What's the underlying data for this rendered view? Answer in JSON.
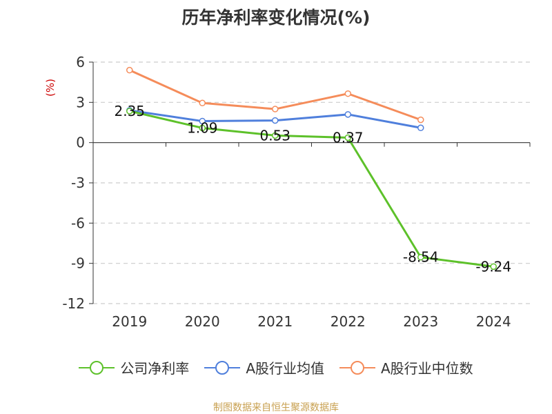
{
  "chart_data": {
    "type": "line",
    "title": "历年净利率变化情况(%)",
    "ylabel": "(%)",
    "xlabel": "",
    "categories": [
      "2019",
      "2020",
      "2021",
      "2022",
      "2023",
      "2024"
    ],
    "ylim": [
      -12,
      6
    ],
    "yticks": [
      6,
      3,
      0,
      -3,
      -6,
      -9,
      -12
    ],
    "grid": true,
    "legend_position": "bottom",
    "series": [
      {
        "name": "公司净利率",
        "color": "#5dc12a",
        "values": [
          2.35,
          1.09,
          0.53,
          0.37,
          -8.54,
          -9.24
        ],
        "labels": [
          "2.35",
          "1.09",
          "0.53",
          "0.37",
          "-8.54",
          "-9.24"
        ]
      },
      {
        "name": "A股行业均值",
        "color": "#4f7fdc",
        "values": [
          2.4,
          1.6,
          1.65,
          2.1,
          1.1,
          null
        ]
      },
      {
        "name": "A股行业中位数",
        "color": "#f58c5a",
        "values": [
          5.4,
          2.95,
          2.5,
          3.65,
          1.7,
          null
        ]
      }
    ]
  },
  "source": "制图数据来自恒生聚源数据库"
}
